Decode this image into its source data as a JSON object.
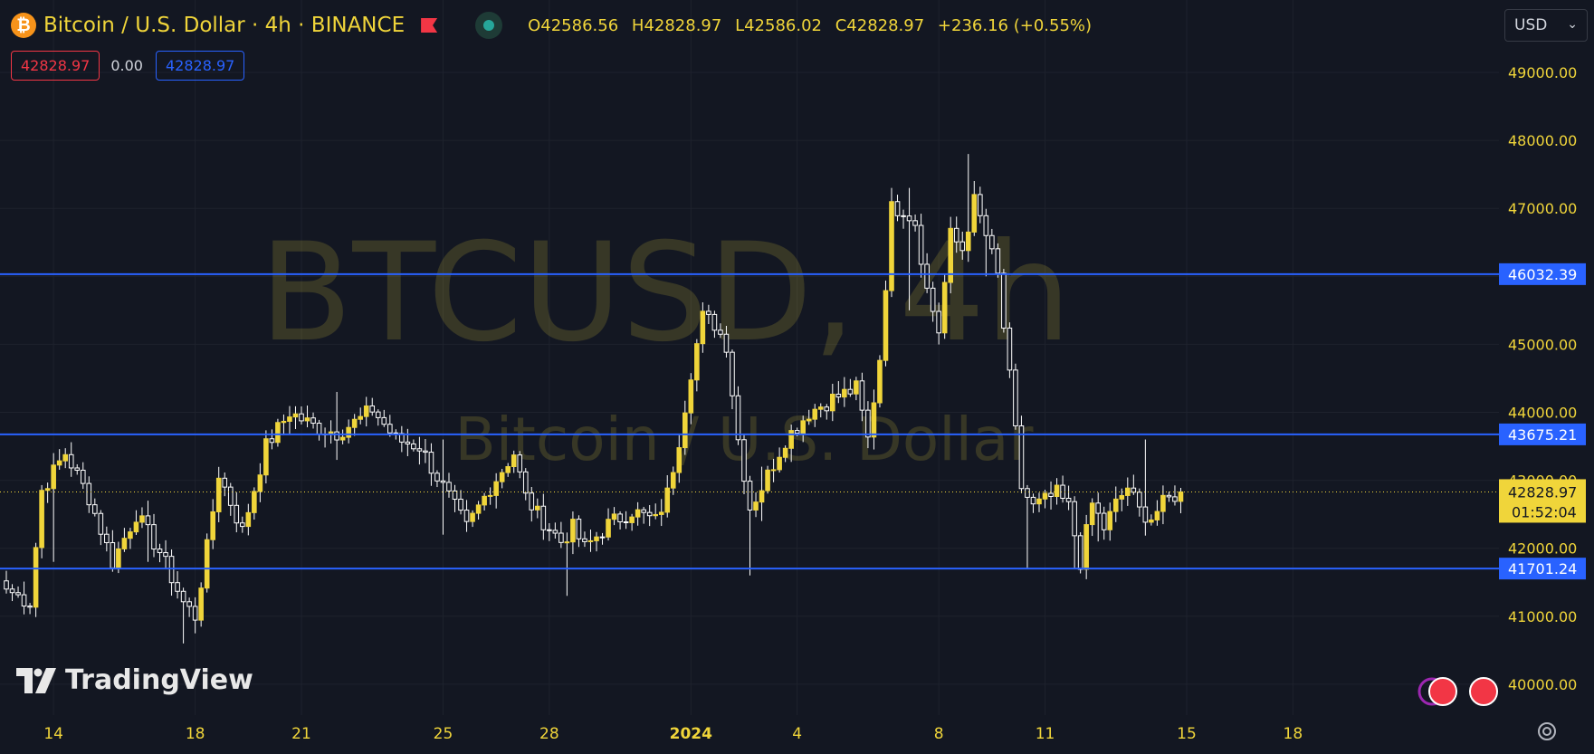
{
  "header": {
    "coin_glyph": "₿",
    "title": "Bitcoin / U.S. Dollar · 4h · BINANCE",
    "ohlc": {
      "open": "O42586.56",
      "high": "H42828.97",
      "low": "L42586.02",
      "close": "C42828.97",
      "change": "+236.16 (+0.55%)"
    }
  },
  "quote": {
    "bid": "42828.97",
    "spread": "0.00",
    "ask": "42828.97"
  },
  "currency": {
    "selected": "USD"
  },
  "watermark": {
    "line1": "BTCUSD, 4h",
    "line2": "Bitcoin / U.S. Dollar"
  },
  "logo": {
    "text": "TradingView"
  },
  "colors": {
    "background": "#131722",
    "candle": "#f0d53a",
    "wick": "#ffffff",
    "level": "#2962ff",
    "grid": "#1e222d",
    "axis_text": "#f0d53a"
  },
  "chart_data": {
    "type": "candlestick",
    "ylim": [
      39800,
      49900
    ],
    "y_ticks": [
      40000,
      41000,
      42000,
      43000,
      44000,
      45000,
      46000,
      47000,
      48000,
      49000
    ],
    "y_tick_labels": [
      "40000.00",
      "41000.00",
      "42000.00",
      "43000.00",
      "44000.00",
      "45000.00",
      "46000.00",
      "47000.00",
      "48000.00",
      "49000.00"
    ],
    "x_ticks": [
      "14",
      "18",
      "21",
      "25",
      "28",
      "2024",
      "4",
      "8",
      "11",
      "15",
      "18"
    ],
    "x_tick_bars": [
      8,
      32,
      50,
      74,
      92,
      116,
      134,
      158,
      176,
      200,
      218
    ],
    "bar_count": 224,
    "horizontal_levels": [
      {
        "value": 46032.39,
        "label": "46032.39"
      },
      {
        "value": 43675.21,
        "label": "43675.21"
      },
      {
        "value": 41701.24,
        "label": "41701.24"
      }
    ],
    "last_price": {
      "value": 42828.97,
      "label": "42828.97",
      "countdown": "01:52:04"
    },
    "anchors": [
      [
        0,
        41400
      ],
      [
        4,
        41200
      ],
      [
        6,
        42850
      ],
      [
        10,
        43400
      ],
      [
        14,
        42750
      ],
      [
        18,
        41800
      ],
      [
        22,
        42500
      ],
      [
        26,
        41950
      ],
      [
        30,
        41200
      ],
      [
        32,
        41000
      ],
      [
        34,
        42000
      ],
      [
        36,
        43100
      ],
      [
        40,
        42250
      ],
      [
        44,
        43500
      ],
      [
        48,
        44000
      ],
      [
        52,
        43800
      ],
      [
        56,
        43700
      ],
      [
        60,
        43900
      ],
      [
        62,
        44050
      ],
      [
        66,
        43600
      ],
      [
        70,
        43500
      ],
      [
        74,
        42900
      ],
      [
        78,
        42300
      ],
      [
        82,
        42900
      ],
      [
        86,
        43400
      ],
      [
        88,
        42750
      ],
      [
        90,
        42500
      ],
      [
        94,
        42100
      ],
      [
        96,
        42300
      ],
      [
        98,
        42000
      ],
      [
        102,
        42350
      ],
      [
        106,
        42550
      ],
      [
        110,
        42400
      ],
      [
        112,
        42800
      ],
      [
        114,
        43600
      ],
      [
        116,
        44600
      ],
      [
        118,
        45400
      ],
      [
        120,
        45300
      ],
      [
        122,
        45000
      ],
      [
        124,
        43600
      ],
      [
        126,
        42600
      ],
      [
        128,
        42900
      ],
      [
        132,
        43600
      ],
      [
        136,
        44000
      ],
      [
        140,
        44200
      ],
      [
        144,
        44350
      ],
      [
        146,
        43600
      ],
      [
        148,
        44800
      ],
      [
        150,
        47000
      ],
      [
        152,
        47000
      ],
      [
        154,
        46800
      ],
      [
        156,
        45800
      ],
      [
        158,
        45200
      ],
      [
        160,
        46600
      ],
      [
        162,
        46400
      ],
      [
        164,
        47100
      ],
      [
        166,
        46600
      ],
      [
        168,
        46000
      ],
      [
        170,
        44500
      ],
      [
        172,
        42900
      ],
      [
        174,
        42600
      ],
      [
        176,
        42700
      ],
      [
        178,
        42800
      ],
      [
        180,
        42600
      ],
      [
        182,
        41800
      ],
      [
        184,
        42650
      ],
      [
        186,
        42300
      ],
      [
        188,
        42650
      ],
      [
        190,
        42900
      ],
      [
        192,
        42550
      ],
      [
        194,
        42450
      ],
      [
        196,
        42650
      ],
      [
        198,
        42780
      ],
      [
        199,
        42828.97
      ]
    ],
    "spikes": [
      [
        8,
        43400,
        41800
      ],
      [
        20,
        42300,
        42000
      ],
      [
        24,
        42700,
        41800
      ],
      [
        30,
        41300,
        40600
      ],
      [
        56,
        44300,
        43300
      ],
      [
        74,
        43600,
        42200
      ],
      [
        95,
        41500,
        41300
      ],
      [
        126,
        42400,
        41600
      ],
      [
        128,
        43200,
        42400
      ],
      [
        150,
        47300,
        46500
      ],
      [
        153,
        47300,
        45500
      ],
      [
        163,
        47800,
        46500
      ],
      [
        166,
        46700,
        46000
      ],
      [
        173,
        42800,
        41700
      ],
      [
        181,
        42100,
        41700
      ],
      [
        185,
        42400,
        42100
      ],
      [
        193,
        43600,
        42200
      ]
    ]
  }
}
